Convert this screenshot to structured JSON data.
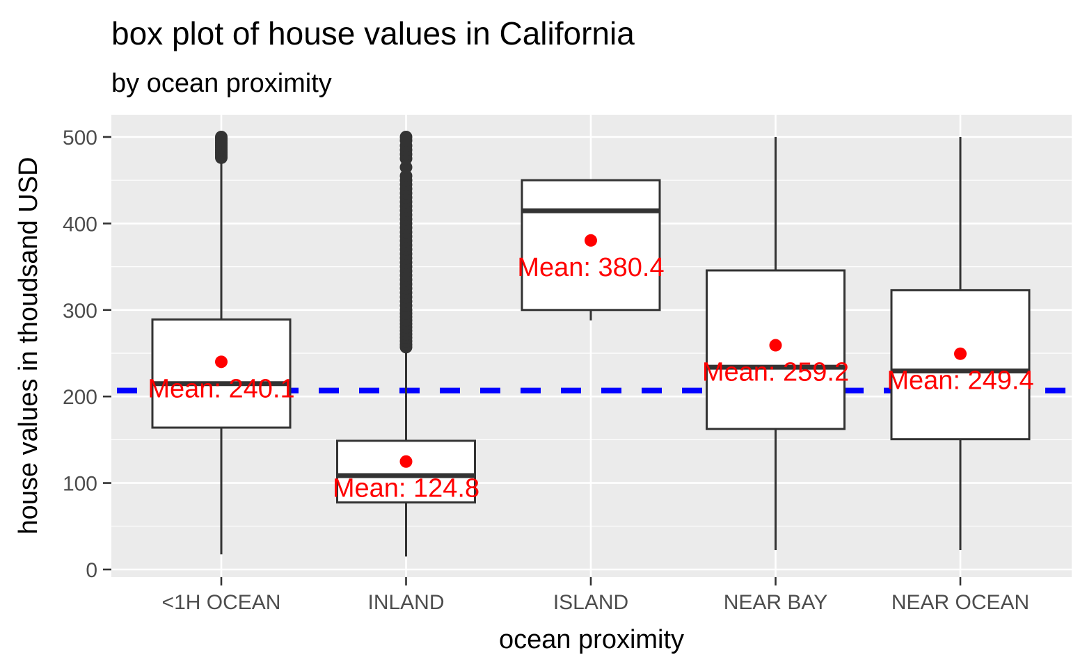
{
  "chart_data": {
    "type": "box",
    "title": "box plot of house values in California",
    "subtitle": "by ocean proximity",
    "xlabel": "ocean proximity",
    "ylabel": "house values in thoudsand USD",
    "ylim": [
      -5,
      525
    ],
    "yticks": [
      0,
      100,
      200,
      300,
      400,
      500
    ],
    "grid": true,
    "colors": {
      "panel": "#ebebeb",
      "grid": "#ffffff",
      "box_line": "#333333",
      "mean": "#ff0000",
      "reference_line": "#0000ff"
    },
    "reference_line": {
      "value": 206.9,
      "style": "dashed"
    },
    "categories": [
      "<1H OCEAN",
      "INLAND",
      "ISLAND",
      "NEAR BAY",
      "NEAR OCEAN"
    ],
    "boxes": [
      {
        "category": "<1H OCEAN",
        "whisker_low": 17.5,
        "q1": 164,
        "median": 214.8,
        "q3": 289,
        "whisker_high": 500,
        "mean": 240.1,
        "mean_label": "Mean: 240.1",
        "outliers": [
          476,
          478,
          480,
          482,
          484,
          486,
          488,
          490,
          492,
          494,
          496,
          498,
          500
        ]
      },
      {
        "category": "INLAND",
        "whisker_low": 15,
        "q1": 77.5,
        "median": 108.5,
        "q3": 148.8,
        "whisker_high": 256,
        "mean": 124.8,
        "mean_label": "Mean: 124.8",
        "outliers": [
          257,
          260,
          264,
          268,
          272,
          276,
          280,
          284,
          288,
          292,
          296,
          300,
          305,
          310,
          315,
          320,
          325,
          330,
          335,
          340,
          345,
          350,
          355,
          360,
          365,
          370,
          375,
          380,
          385,
          390,
          395,
          400,
          405,
          410,
          415,
          420,
          425,
          430,
          435,
          440,
          445,
          450,
          455,
          465,
          475,
          480,
          485,
          490,
          496,
          500
        ]
      },
      {
        "category": "ISLAND",
        "whisker_low": 288,
        "q1": 300,
        "median": 414.7,
        "q3": 450,
        "whisker_high": 450,
        "mean": 380.4,
        "mean_label": "Mean: 380.4",
        "outliers": []
      },
      {
        "category": "NEAR BAY",
        "whisker_low": 22.5,
        "q1": 162.5,
        "median": 233.8,
        "q3": 345.7,
        "whisker_high": 500,
        "mean": 259.2,
        "mean_label": "Mean: 259.2",
        "outliers": []
      },
      {
        "category": "NEAR OCEAN",
        "whisker_low": 22.5,
        "q1": 150.6,
        "median": 229.5,
        "q3": 322.8,
        "whisker_high": 500,
        "mean": 249.4,
        "mean_label": "Mean: 249.4",
        "outliers": []
      }
    ]
  }
}
